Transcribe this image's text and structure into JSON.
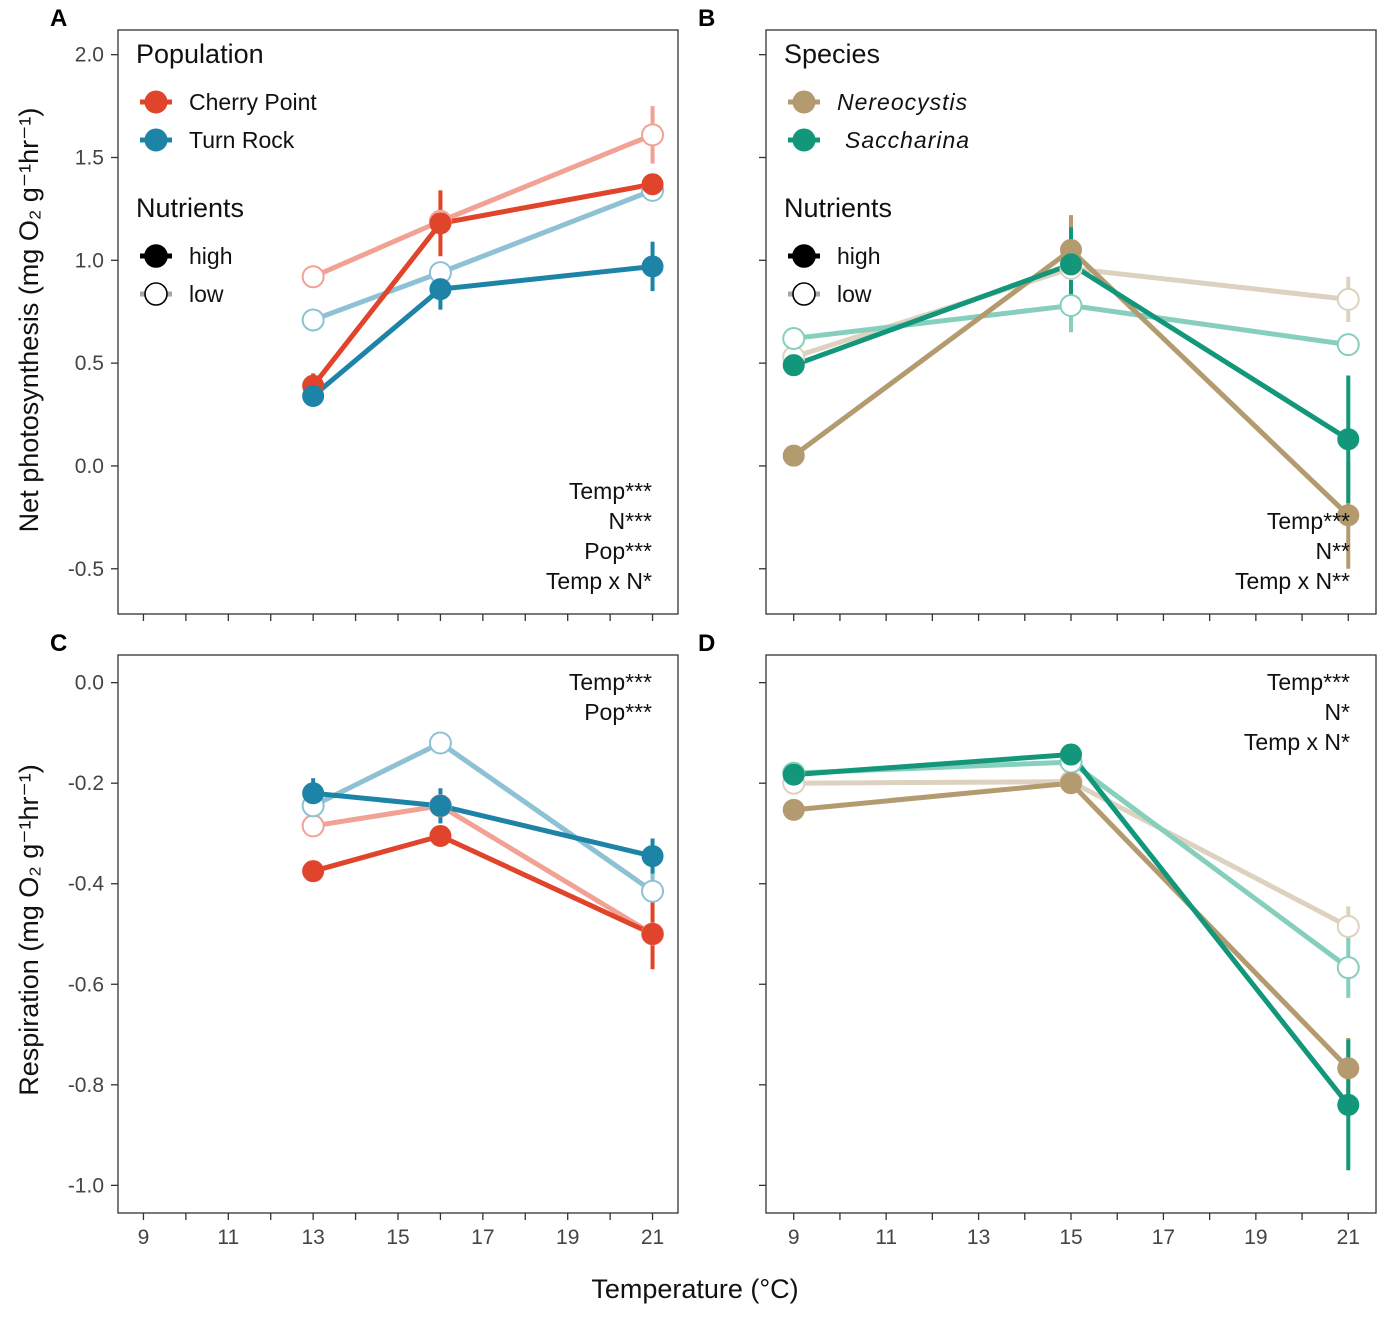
{
  "figure": {
    "x_title": "Temperature (°C)",
    "y_title_top": "Net photosynthesis (mg O₂ g⁻¹hr⁻¹)",
    "y_title_bottom": "Respiration (mg O₂ g⁻¹hr⁻¹)"
  },
  "colors": {
    "cherry_high": "#e0442b",
    "cherry_low": "#f2a195",
    "turn_high": "#1d84a8",
    "turn_low": "#8ec1d3",
    "nereo_high": "#b39a6f",
    "nereo_low": "#ddd2bf",
    "sacch_high": "#13977a",
    "sacch_low": "#86cfbd"
  },
  "chart_data": [
    {
      "id": "A",
      "type": "line",
      "panel_label": "A",
      "ylabel": "Net photosynthesis (mg O₂ g⁻¹hr⁻¹)",
      "xlabel": "",
      "xlim": [
        8.4,
        21.6
      ],
      "ylim": [
        -0.72,
        2.12
      ],
      "x_ticks": [
        9,
        11,
        13,
        15,
        17,
        19,
        21
      ],
      "x_tick_labels": [],
      "y_ticks": [
        -0.5,
        0.0,
        0.5,
        1.0,
        1.5,
        2.0
      ],
      "y_tick_labels": [
        "-0.5",
        "0.0",
        "0.5",
        "1.0",
        "1.5",
        "2.0"
      ],
      "legend": {
        "group_title": "Population",
        "groups": [
          "Cherry Point",
          "Turn Rock"
        ],
        "italic": false,
        "nutrient_title": "Nutrients",
        "nutrients": [
          "high",
          "low"
        ],
        "placement": "top-left"
      },
      "annotations": [
        "Temp***",
        "N***",
        "Pop***",
        "Temp x N*"
      ],
      "annotation_position": "bottom-right",
      "series": [
        {
          "name": "Cherry Point low",
          "color_key": "cherry_low",
          "filled": false,
          "x": [
            13,
            16,
            21
          ],
          "y": [
            0.92,
            1.19,
            1.61
          ],
          "err": [
            0,
            0.1,
            0.14
          ]
        },
        {
          "name": "Turn Rock low",
          "color_key": "turn_low",
          "filled": false,
          "x": [
            13,
            16,
            21
          ],
          "y": [
            0.71,
            0.94,
            1.34
          ],
          "err": [
            0,
            0,
            0
          ]
        },
        {
          "name": "Cherry Point high",
          "color_key": "cherry_high",
          "filled": true,
          "x": [
            13,
            16,
            21
          ],
          "y": [
            0.39,
            1.18,
            1.37
          ],
          "err": [
            0.06,
            0.16,
            0.05
          ]
        },
        {
          "name": "Turn Rock high",
          "color_key": "turn_high",
          "filled": true,
          "x": [
            13,
            16,
            21
          ],
          "y": [
            0.34,
            0.86,
            0.97
          ],
          "err": [
            0.04,
            0.1,
            0.12
          ]
        }
      ]
    },
    {
      "id": "B",
      "type": "line",
      "panel_label": "B",
      "ylabel": "",
      "xlabel": "",
      "xlim": [
        8.4,
        21.6
      ],
      "ylim": [
        -0.72,
        2.12
      ],
      "x_ticks": [
        9,
        11,
        13,
        15,
        17,
        19,
        21
      ],
      "x_tick_labels": [],
      "y_ticks": [
        -0.5,
        0.0,
        0.5,
        1.0,
        1.5,
        2.0
      ],
      "y_tick_labels": [],
      "legend": {
        "group_title": "Species",
        "groups": [
          "Nereocystis",
          "Saccharina"
        ],
        "italic": true,
        "nutrient_title": "Nutrients",
        "nutrients": [
          "high",
          "low"
        ],
        "placement": "top-left"
      },
      "annotations": [
        "Temp***",
        "N**",
        "Temp x N**"
      ],
      "annotation_position": "bottom-right",
      "series": [
        {
          "name": "Nereocystis low",
          "color_key": "nereo_low",
          "filled": false,
          "x": [
            9,
            15,
            21
          ],
          "y": [
            0.53,
            0.96,
            0.81
          ],
          "err": [
            0,
            0,
            0.11
          ]
        },
        {
          "name": "Saccharina low",
          "color_key": "sacch_low",
          "filled": false,
          "x": [
            9,
            15,
            21
          ],
          "y": [
            0.62,
            0.78,
            0.59
          ],
          "err": [
            0,
            0.13,
            0
          ]
        },
        {
          "name": "Nereocystis high",
          "color_key": "nereo_high",
          "filled": true,
          "x": [
            9,
            15,
            21
          ],
          "y": [
            0.05,
            1.05,
            -0.24
          ],
          "err": [
            0,
            0.17,
            0.26
          ]
        },
        {
          "name": "Saccharina high",
          "color_key": "sacch_high",
          "filled": true,
          "x": [
            9,
            15,
            21
          ],
          "y": [
            0.49,
            0.98,
            0.13
          ],
          "err": [
            0,
            0.18,
            0.31
          ]
        }
      ]
    },
    {
      "id": "C",
      "type": "line",
      "panel_label": "C",
      "ylabel": "Respiration (mg O₂ g⁻¹hr⁻¹)",
      "xlabel": "",
      "xlim": [
        8.4,
        21.6
      ],
      "ylim": [
        -1.055,
        0.055
      ],
      "x_ticks": [
        9,
        11,
        13,
        15,
        17,
        19,
        21
      ],
      "x_tick_labels": [
        "9",
        "11",
        "13",
        "15",
        "17",
        "19",
        "21"
      ],
      "y_ticks": [
        -1.0,
        -0.8,
        -0.6,
        -0.4,
        -0.2,
        0.0
      ],
      "y_tick_labels": [
        "-1.0",
        "-0.8",
        "-0.6",
        "-0.4",
        "-0.2",
        "0.0"
      ],
      "legend": null,
      "annotations": [
        "Temp***",
        "Pop***"
      ],
      "annotation_position": "top-right",
      "series": [
        {
          "name": "Cherry Point low",
          "color_key": "cherry_low",
          "filled": false,
          "x": [
            13,
            16,
            21
          ],
          "y": [
            -0.285,
            -0.245,
            -0.5
          ],
          "err": [
            0,
            0,
            0
          ]
        },
        {
          "name": "Turn Rock low",
          "color_key": "turn_low",
          "filled": false,
          "x": [
            13,
            16,
            21
          ],
          "y": [
            -0.245,
            -0.12,
            -0.415
          ],
          "err": [
            0,
            0,
            0.055
          ]
        },
        {
          "name": "Cherry Point high",
          "color_key": "cherry_high",
          "filled": true,
          "x": [
            13,
            16,
            21
          ],
          "y": [
            -0.375,
            -0.305,
            -0.5
          ],
          "err": [
            0,
            0,
            0.07
          ]
        },
        {
          "name": "Turn Rock high",
          "color_key": "turn_high",
          "filled": true,
          "x": [
            13,
            16,
            21
          ],
          "y": [
            -0.22,
            -0.245,
            -0.345
          ],
          "err": [
            0.03,
            0.035,
            0.035
          ]
        }
      ]
    },
    {
      "id": "D",
      "type": "line",
      "panel_label": "D",
      "ylabel": "",
      "xlabel": "",
      "xlim": [
        8.4,
        21.6
      ],
      "ylim": [
        -1.055,
        0.055
      ],
      "x_ticks": [
        9,
        11,
        13,
        15,
        17,
        19,
        21
      ],
      "x_tick_labels": [
        "9",
        "11",
        "13",
        "15",
        "17",
        "19",
        "21"
      ],
      "y_ticks": [
        -1.0,
        -0.8,
        -0.6,
        -0.4,
        -0.2,
        0.0
      ],
      "y_tick_labels": [],
      "legend": null,
      "annotations": [
        "Temp***",
        "N*",
        "Temp x N*"
      ],
      "annotation_position": "top-right",
      "series": [
        {
          "name": "Nereocystis low",
          "color_key": "nereo_low",
          "filled": false,
          "x": [
            9,
            15,
            21
          ],
          "y": [
            -0.2,
            -0.197,
            -0.485
          ],
          "err": [
            0,
            0,
            0.04
          ]
        },
        {
          "name": "Saccharina low",
          "color_key": "sacch_low",
          "filled": false,
          "x": [
            9,
            15,
            21
          ],
          "y": [
            -0.18,
            -0.158,
            -0.567
          ],
          "err": [
            0,
            0,
            0.06
          ]
        },
        {
          "name": "Nereocystis high",
          "color_key": "nereo_high",
          "filled": true,
          "x": [
            9,
            15,
            21
          ],
          "y": [
            -0.253,
            -0.2,
            -0.767
          ],
          "err": [
            0.02,
            0,
            0.06
          ]
        },
        {
          "name": "Saccharina high",
          "color_key": "sacch_high",
          "filled": true,
          "x": [
            9,
            15,
            21
          ],
          "y": [
            -0.183,
            -0.143,
            -0.84
          ],
          "err": [
            0,
            0,
            0.13
          ]
        }
      ]
    }
  ]
}
